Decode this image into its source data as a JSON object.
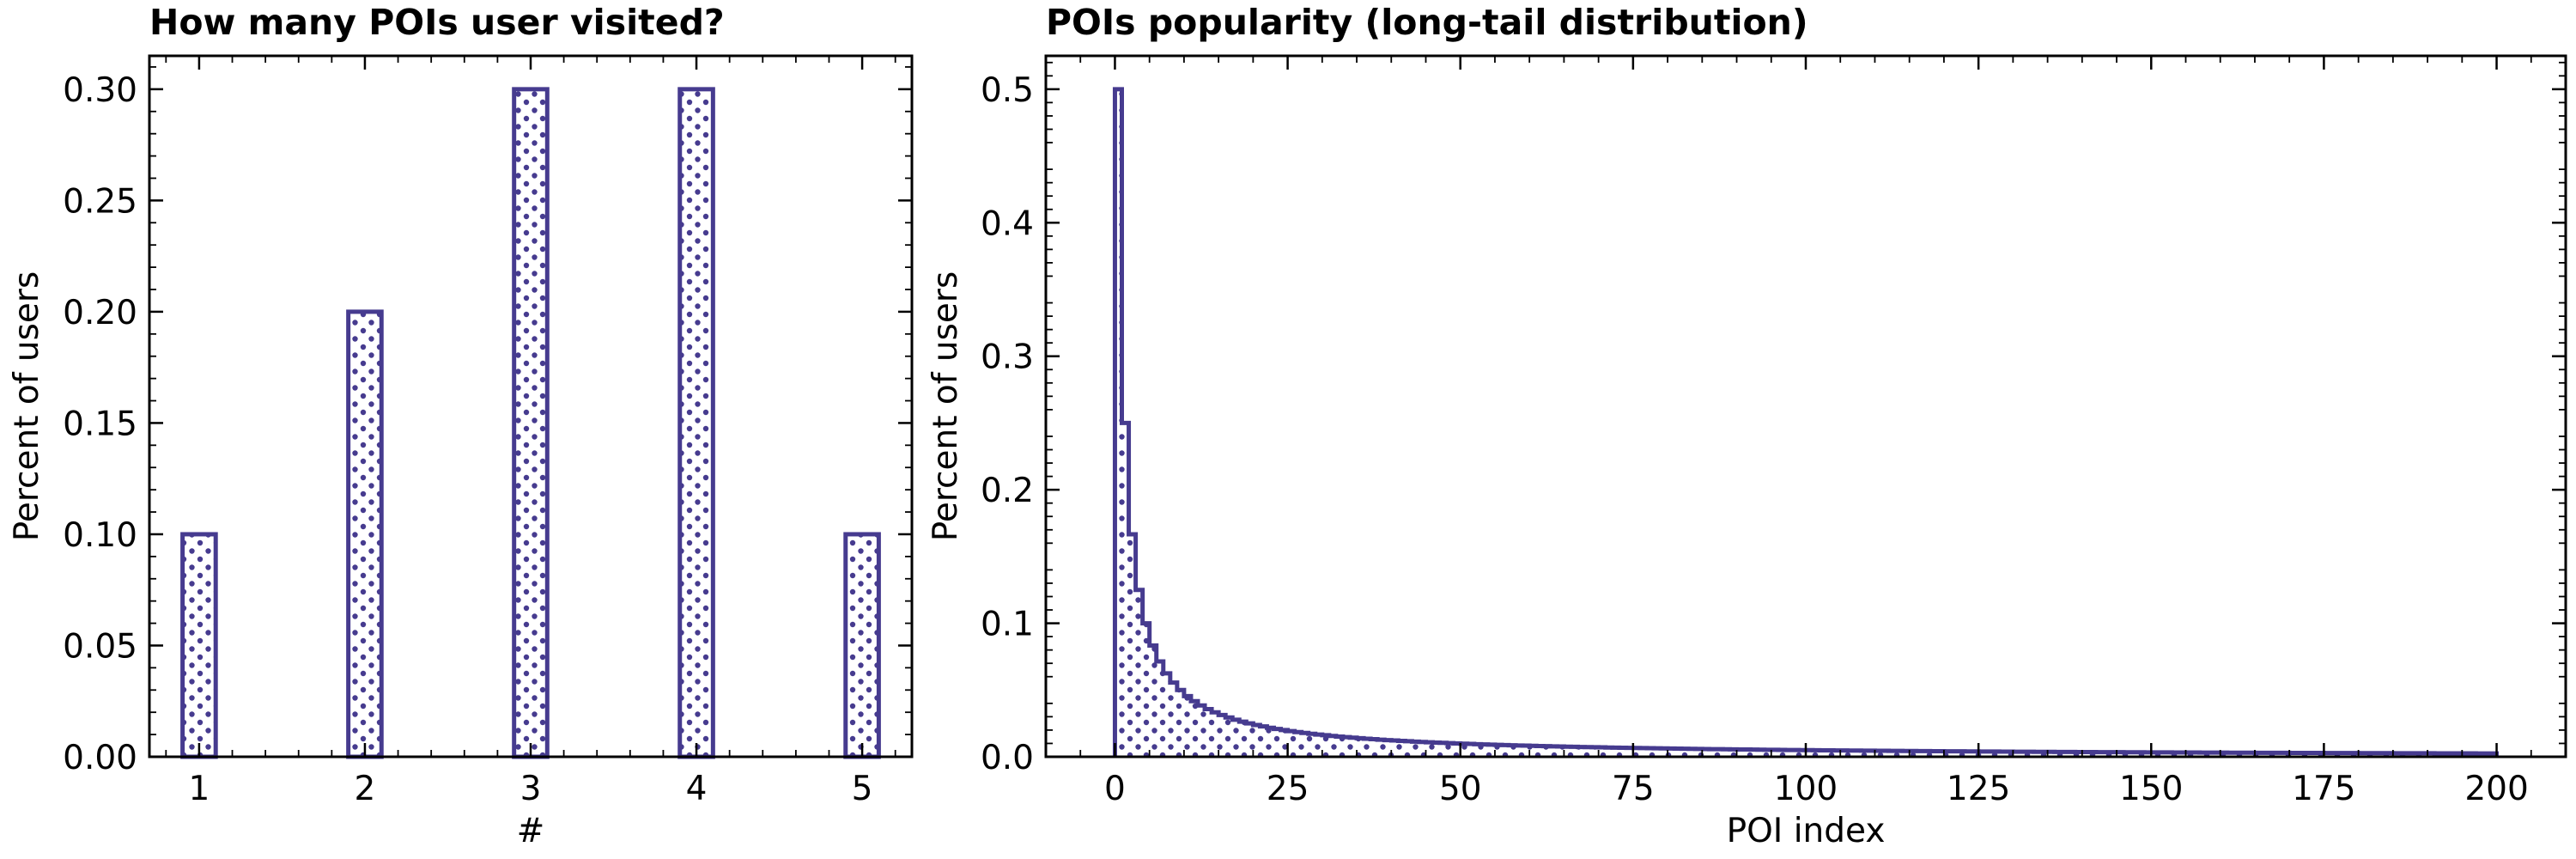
{
  "colors": {
    "series": "#463b8f",
    "dots": "#463b8f",
    "axis": "#000000"
  },
  "chart_data": [
    {
      "type": "bar",
      "title": "How many POIs user visited?",
      "xlabel": "#",
      "ylabel": "Percent of users",
      "categories": [
        1,
        2,
        3,
        4,
        5
      ],
      "values": [
        0.1,
        0.2,
        0.3,
        0.3,
        0.1
      ],
      "xlim": [
        0.7,
        5.3
      ],
      "ylim": [
        0,
        0.315
      ],
      "xticks": [
        "1",
        "2",
        "3",
        "4",
        "5"
      ],
      "yticks": [
        "0.00",
        "0.05",
        "0.10",
        "0.15",
        "0.20",
        "0.25",
        "0.30"
      ],
      "ytick_values": [
        0,
        0.05,
        0.1,
        0.15,
        0.2,
        0.25,
        0.3
      ],
      "bar_width": 0.2,
      "hatch": "dots",
      "grid": false
    },
    {
      "type": "area",
      "style": "step",
      "title": "POIs popularity (long-tail distribution)",
      "xlabel": "POI index",
      "ylabel": "Percent of users",
      "function": "0.5 / (x + 1)",
      "x_range": [
        0,
        200
      ],
      "xlim": [
        -10,
        210
      ],
      "ylim": [
        0,
        0.525
      ],
      "xticks": [
        "0",
        "25",
        "50",
        "75",
        "100",
        "125",
        "150",
        "175",
        "200"
      ],
      "xtick_values": [
        0,
        25,
        50,
        75,
        100,
        125,
        150,
        175,
        200
      ],
      "yticks": [
        "0.0",
        "0.1",
        "0.2",
        "0.3",
        "0.4",
        "0.5"
      ],
      "ytick_values": [
        0,
        0.1,
        0.2,
        0.3,
        0.4,
        0.5
      ],
      "hatch": "dots",
      "grid": false
    }
  ]
}
